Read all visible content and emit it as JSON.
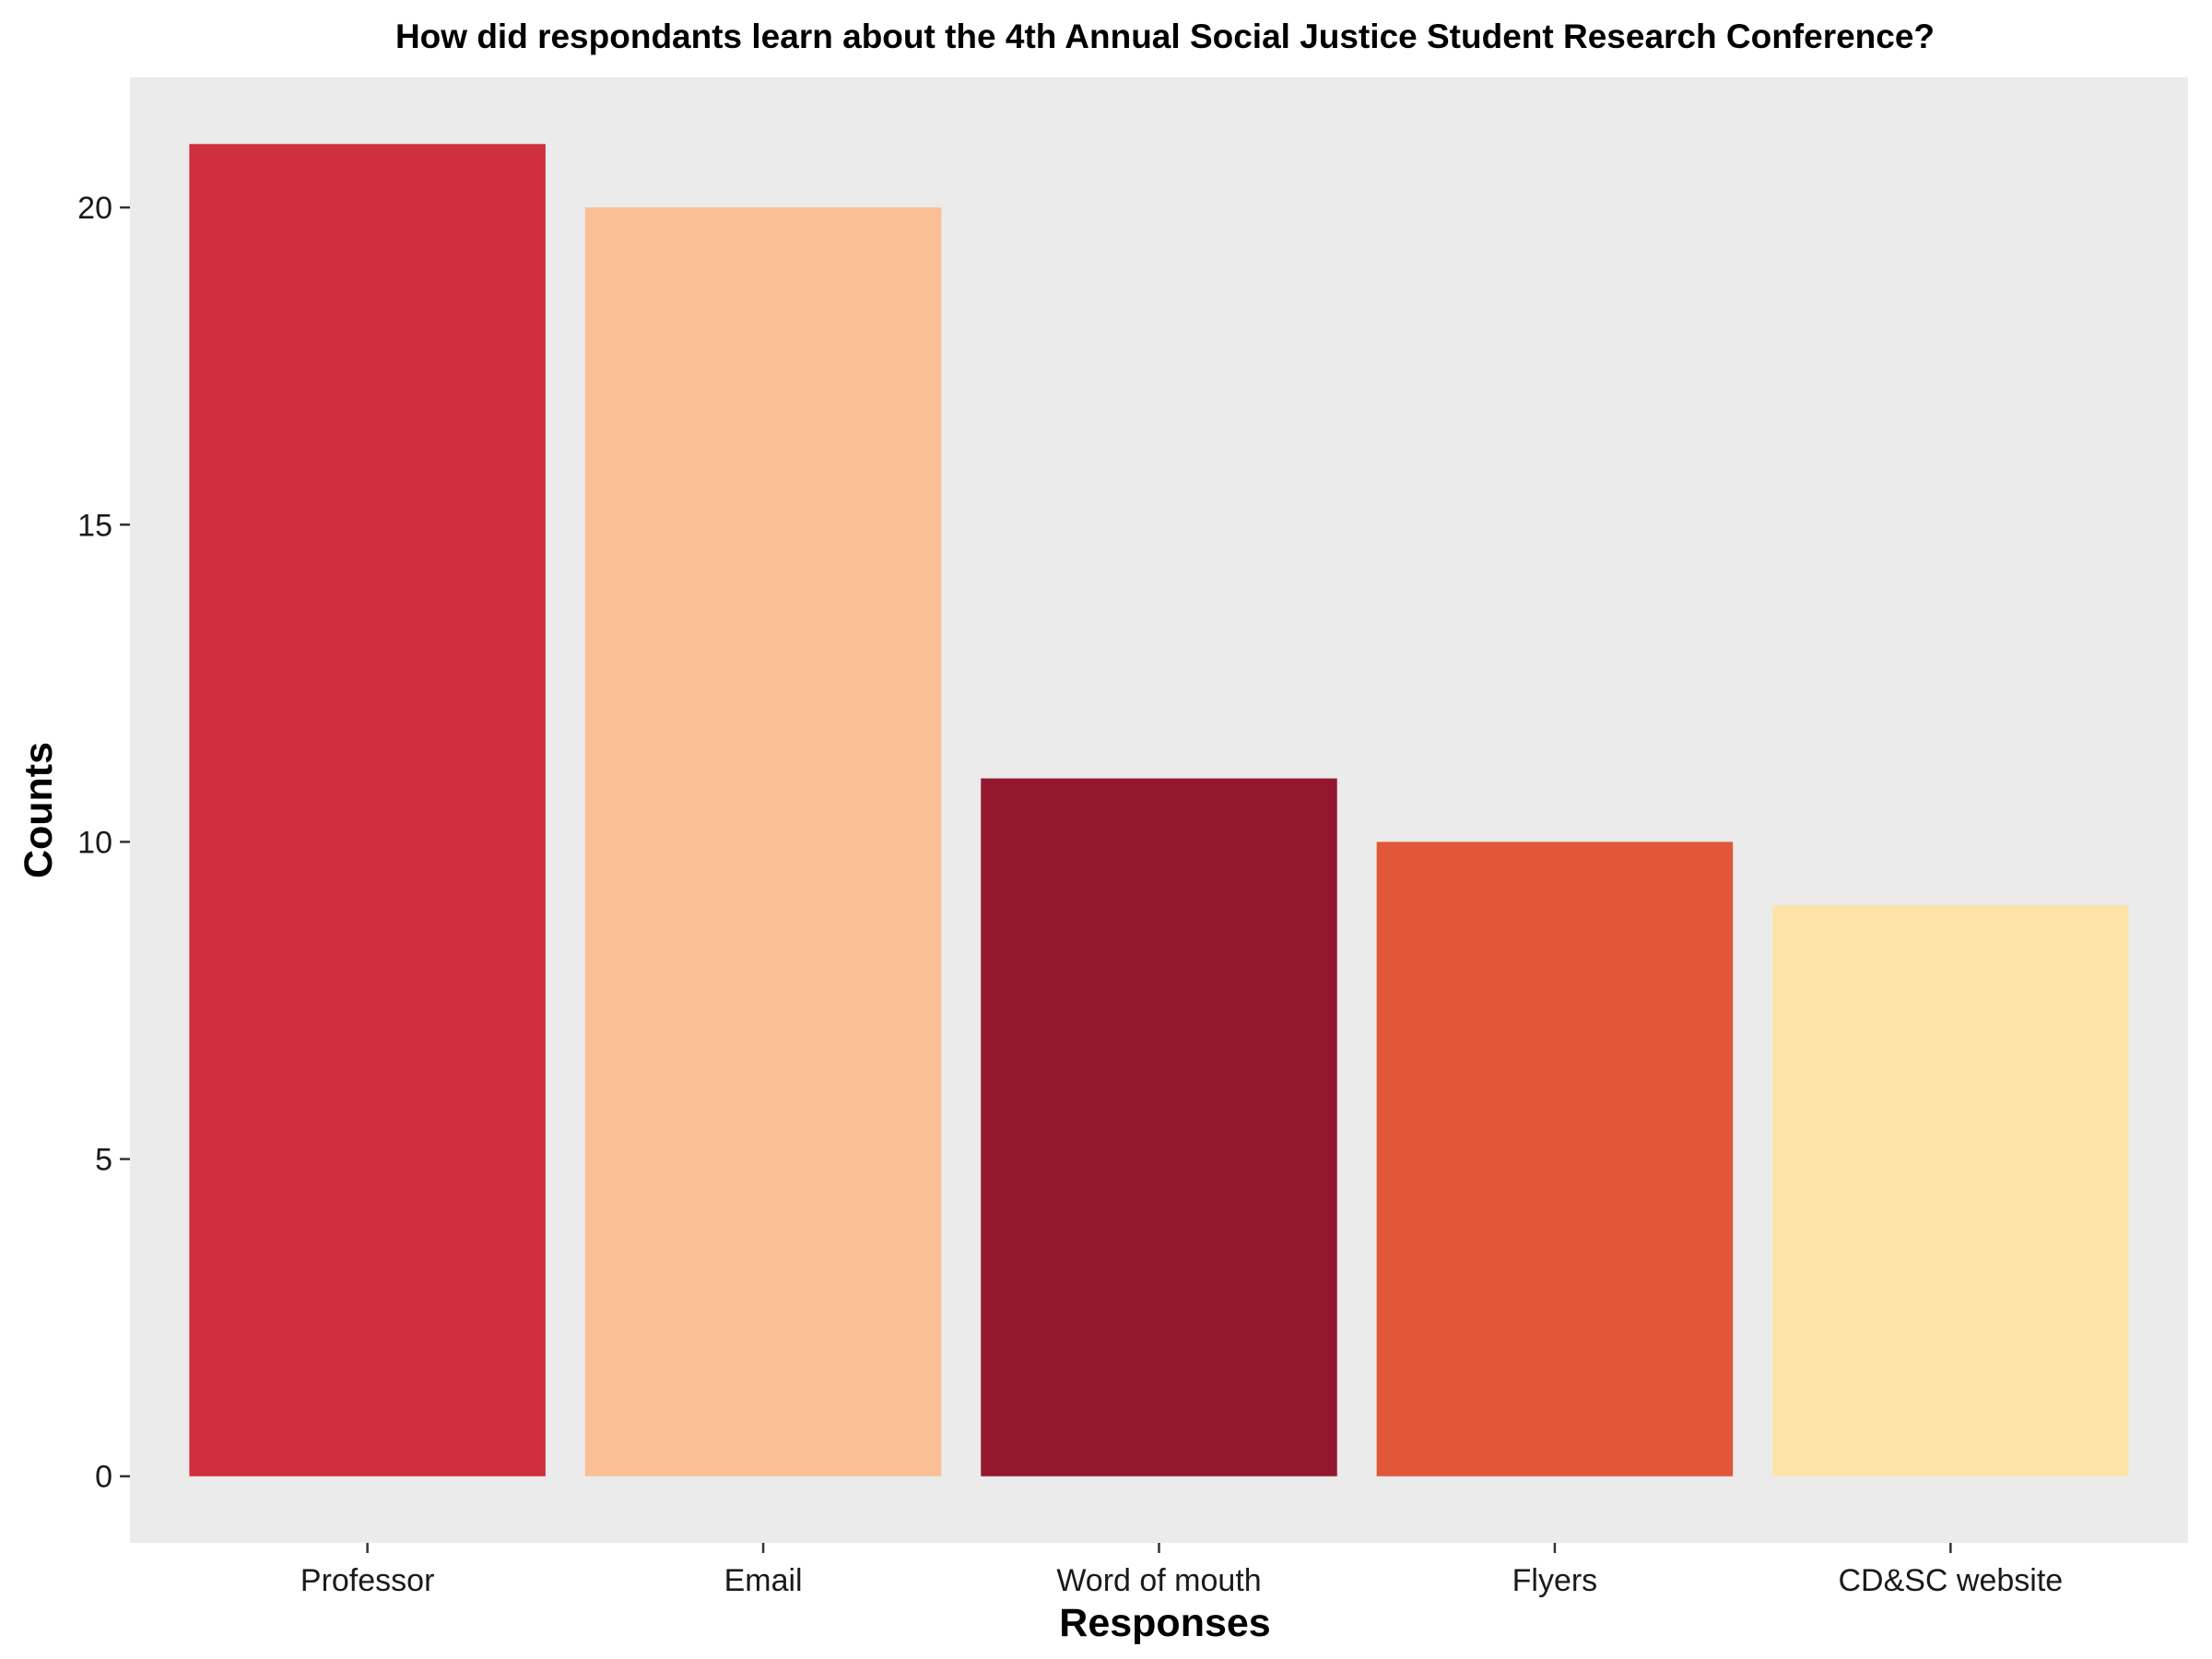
{
  "chart_data": {
    "type": "bar",
    "title": "How did respondants learn about the 4th Annual Social Justice Student Research Conference?",
    "xlabel": "Responses",
    "ylabel": "Counts",
    "categories": [
      "Professor",
      "Email",
      "Word of mouth",
      "Flyers",
      "CD&SC website"
    ],
    "values": [
      21,
      20,
      11,
      10,
      9
    ],
    "colors": [
      "#CF2F3E",
      "#FABF95",
      "#93172F",
      "#E15737",
      "#FEE3A9"
    ],
    "yticks": [
      0,
      5,
      10,
      15,
      20
    ],
    "ylim": [
      -1.05,
      22.05
    ],
    "panel_background": "#EBEBEB",
    "grid": false,
    "legend": "none"
  }
}
